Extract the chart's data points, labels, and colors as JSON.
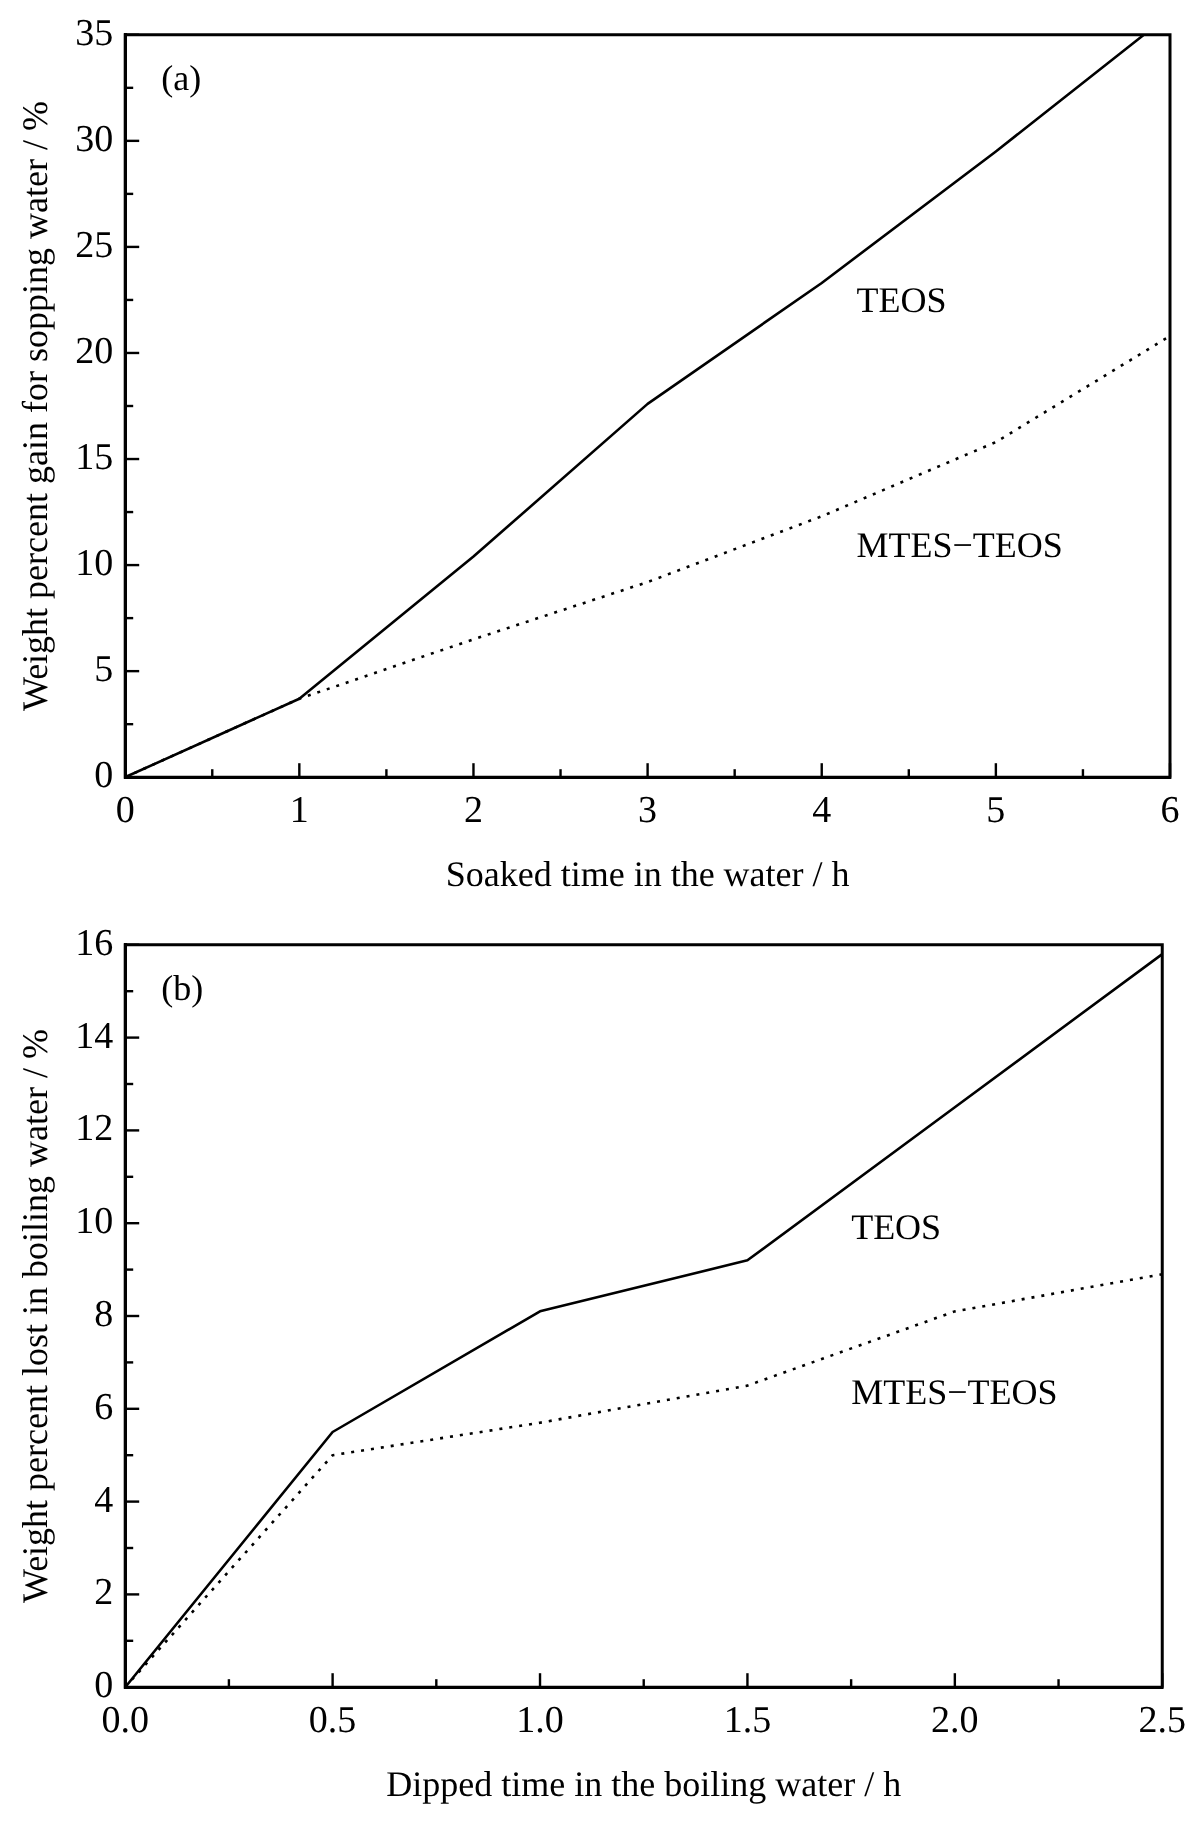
{
  "chart_data": [
    {
      "type": "line",
      "xlabel": "Soaked time in the water / h",
      "ylabel": "Weight percent gain for sopping water / %",
      "annotations": [
        "(a)"
      ],
      "xlim": [
        0,
        6
      ],
      "ylim": [
        0,
        35
      ],
      "xticks": [
        0,
        {
          "value": 0.5,
          "label": null
        },
        1,
        {
          "value": 1.5,
          "label": null
        },
        2,
        {
          "value": 2.5,
          "label": null
        },
        3,
        {
          "value": 3.5,
          "label": null
        },
        4,
        {
          "value": 4.5,
          "label": null
        },
        5,
        {
          "value": 5.5,
          "label": null
        },
        6
      ],
      "yticks": [
        0,
        {
          "value": 2.5,
          "label": null
        },
        5,
        {
          "value": 7.5,
          "label": null
        },
        10,
        {
          "value": 12.5,
          "label": null
        },
        15,
        {
          "value": 17.5,
          "label": null
        },
        20,
        {
          "value": 22.5,
          "label": null
        },
        25,
        {
          "value": 27.5,
          "label": null
        },
        30,
        {
          "value": 32.5,
          "label": null
        },
        35
      ],
      "grid": false,
      "legend": false,
      "marker": "none",
      "series": [
        {
          "name": "TEOS",
          "color": "#000000",
          "line_style": "solid",
          "x": [
            0,
            1,
            2,
            3,
            4,
            5,
            5.85
          ],
          "values": [
            0,
            3.7,
            10.4,
            17.6,
            23.3,
            29.5,
            35
          ]
        },
        {
          "name": "MTES−TEOS",
          "color": "#000000",
          "line_style": "dotted",
          "x": [
            0,
            1,
            2,
            3,
            4,
            5,
            6
          ],
          "values": [
            0,
            3.7,
            6.5,
            9.2,
            12.3,
            15.8,
            20.8
          ]
        }
      ]
    },
    {
      "type": "line",
      "xlabel": "Dipped time in the boiling water / h",
      "ylabel": "Weight percent lost in boiling water / %",
      "annotations": [
        "(b)"
      ],
      "xlim": [
        0,
        2.5
      ],
      "ylim": [
        0,
        16
      ],
      "xticks": [
        {
          "value": 0,
          "label": "0.0"
        },
        {
          "value": 0.25,
          "label": null
        },
        0.5,
        {
          "value": 0.75,
          "label": null
        },
        {
          "value": 1,
          "label": "1.0"
        },
        {
          "value": 1.25,
          "label": null
        },
        1.5,
        {
          "value": 1.75,
          "label": null
        },
        {
          "value": 2,
          "label": "2.0"
        },
        {
          "value": 2.25,
          "label": null
        },
        2.5
      ],
      "yticks": [
        0,
        {
          "value": 1,
          "label": null
        },
        2,
        {
          "value": 3,
          "label": null
        },
        4,
        {
          "value": 5,
          "label": null
        },
        6,
        {
          "value": 7,
          "label": null
        },
        8,
        {
          "value": 9,
          "label": null
        },
        10,
        {
          "value": 11,
          "label": null
        },
        12,
        {
          "value": 13,
          "label": null
        },
        14,
        {
          "value": 15,
          "label": null
        },
        16
      ],
      "grid": false,
      "legend": false,
      "marker": "none",
      "series": [
        {
          "name": "TEOS",
          "color": "#000000",
          "line_style": "solid",
          "x": [
            0,
            0.5,
            1,
            1.5,
            2,
            2.5
          ],
          "values": [
            0,
            5.5,
            8.1,
            9.2,
            12.5,
            15.8
          ]
        },
        {
          "name": "MTES−TEOS",
          "color": "#000000",
          "line_style": "dotted",
          "x": [
            0,
            0.5,
            1,
            1.5,
            2,
            2.5
          ],
          "values": [
            0,
            5.0,
            5.7,
            6.5,
            8.1,
            8.9
          ]
        }
      ]
    }
  ]
}
